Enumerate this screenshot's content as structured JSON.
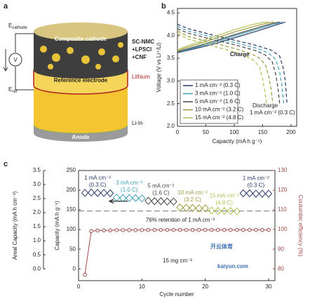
{
  "diagram": {
    "panel_label": "a",
    "e_cathode": {
      "symbol": "E",
      "subscript": "cathode"
    },
    "voltmeter": "V",
    "e_ref": {
      "symbol": "E",
      "subscript": "ref"
    },
    "cathode_layer": "Composite cathode",
    "cathode_parts": [
      "SC-NMC",
      "+LPSCl",
      "+CNF"
    ],
    "lithium": "Lithium",
    "reference_layer": "Reference electrode",
    "li_in": "Li-In",
    "anode": "Anode"
  },
  "chart_data": [
    {
      "type": "line",
      "panel_label": "b",
      "x_label": "Capacity (mA h g⁻¹)",
      "y_label": "Voltage (V vs Li⁺/Li)",
      "xlim": [
        0,
        210
      ],
      "ylim": [
        2.0,
        4.6
      ],
      "xticks": [
        0,
        50,
        100,
        150,
        200
      ],
      "yticks": [
        {
          "value": 2.0,
          "label": "2.0"
        },
        {
          "value": 2.5,
          "label": "2.5"
        },
        {
          "value": 3.0,
          "label": "3.0"
        },
        {
          "value": 3.5,
          "label": "3.5"
        },
        {
          "value": 4.0,
          "label": "4.0"
        },
        {
          "value": 4.5,
          "label": "4.5"
        }
      ],
      "legend": "lower left",
      "annotations": {
        "charge": "Charge",
        "discharge": "Discharge",
        "discharge_rate": "1 mA cm⁻² (0.3 C)"
      },
      "series": [
        {
          "name": "1 mA cm⁻² (0.3 C)",
          "color": "#2b3a67",
          "charge": {
            "x": [
              0,
              10,
              30,
              60,
              100,
              140,
              170,
              190
            ],
            "values": [
              3.62,
              3.65,
              3.71,
              3.8,
              3.95,
              4.1,
              4.22,
              4.3
            ]
          },
          "discharge": {
            "x": [
              0,
              20,
              60,
              100,
              140,
              165,
              180,
              186,
              190,
              193
            ],
            "values": [
              4.25,
              4.15,
              4.02,
              3.9,
              3.78,
              3.68,
              3.55,
              3.3,
              3.0,
              2.5
            ]
          }
        },
        {
          "name": "3 mA cm⁻² (1.0 C)",
          "color": "#3f9fb5",
          "charge": {
            "x": [
              0,
              10,
              30,
              60,
              100,
              140,
              170,
              185
            ],
            "values": [
              3.63,
              3.66,
              3.73,
              3.83,
              3.99,
              4.14,
              4.25,
              4.3
            ]
          },
          "discharge": {
            "x": [
              0,
              20,
              60,
              100,
              140,
              160,
              173,
              180,
              184,
              187
            ],
            "values": [
              4.2,
              4.1,
              3.97,
              3.85,
              3.72,
              3.62,
              3.48,
              3.2,
              2.9,
              2.5
            ]
          }
        },
        {
          "name": "5 mA cm⁻² (1.6 C)",
          "color": "#444444",
          "charge": {
            "x": [
              0,
              10,
              30,
              60,
              100,
              140,
              168,
              180
            ],
            "values": [
              3.64,
              3.68,
              3.75,
              3.86,
              4.02,
              4.17,
              4.27,
              4.3
            ]
          },
          "discharge": {
            "x": [
              0,
              20,
              60,
              100,
              140,
              155,
              167,
              173,
              177,
              180
            ],
            "values": [
              4.15,
              4.05,
              3.92,
              3.8,
              3.66,
              3.57,
              3.42,
              3.15,
              2.85,
              2.5
            ]
          }
        },
        {
          "name": "10 mA cm⁻² (3.2 C)",
          "color": "#9c9a3c",
          "charge": {
            "x": [
              0,
              10,
              30,
              60,
              100,
              140,
              160,
              170
            ],
            "values": [
              3.66,
              3.71,
              3.79,
              3.91,
              4.08,
              4.22,
              4.28,
              4.3
            ]
          },
          "discharge": {
            "x": [
              0,
              20,
              60,
              100,
              130,
              145,
              155,
              161,
              165,
              168
            ],
            "values": [
              4.1,
              3.98,
              3.85,
              3.72,
              3.6,
              3.5,
              3.35,
              3.1,
              2.8,
              2.5
            ]
          }
        },
        {
          "name": "15 mA cm⁻² (4.8 C)",
          "color": "#b5bf55",
          "charge": {
            "x": [
              0,
              10,
              30,
              60,
              100,
              130,
              150,
              160
            ],
            "values": [
              3.68,
              3.74,
              3.83,
              3.96,
              4.13,
              4.24,
              4.29,
              4.3
            ]
          },
          "discharge": {
            "x": [
              0,
              20,
              60,
              100,
              120,
              135,
              145,
              150,
              154,
              157
            ],
            "values": [
              4.05,
              3.92,
              3.78,
              3.64,
              3.55,
              3.45,
              3.3,
              3.05,
              2.75,
              2.5
            ]
          }
        }
      ]
    },
    {
      "type": "scatter",
      "panel_label": "c",
      "x_label": "Cycle number",
      "y_label": "Capacity (mA h g⁻¹)",
      "y2_label": "Coulombic efficiency (%)",
      "xlim": [
        0,
        31
      ],
      "ylim": [
        -30,
        250
      ],
      "y2lim": [
        74,
        130
      ],
      "xticks": [
        0,
        10,
        20,
        30
      ],
      "yticks": [
        0,
        50,
        100,
        150,
        200,
        250
      ],
      "y2ticks": [
        80,
        90,
        100,
        110,
        120,
        130
      ],
      "areal_axis": {
        "label": "Areal Capacity (mA h cm⁻²)",
        "lim": [
          -0.42,
          3.5
        ],
        "ticks": [
          {
            "value": 0,
            "label": "0.0"
          },
          {
            "value": 0.5,
            "label": "0.5"
          },
          {
            "value": 1,
            "label": "1.0"
          },
          {
            "value": 1.5,
            "label": "1.5"
          },
          {
            "value": 2,
            "label": "2.0"
          },
          {
            "value": 2.5,
            "label": "2.5"
          },
          {
            "value": 3,
            "label": "3.0"
          },
          {
            "value": 3.5,
            "label": "3.5"
          }
        ]
      },
      "reference_line": 147,
      "reference_label": "76% retention of 1 mA cm⁻²",
      "loading_label": "15 mg cm⁻²",
      "series": [
        {
          "label_lines": [
            "1 mA cm⁻²",
            "(0.3 C)"
          ],
          "color": "#2b3a67",
          "x": [
            1,
            2,
            3,
            4,
            5
          ],
          "values": [
            193,
            194,
            193,
            193,
            192
          ]
        },
        {
          "label_lines": [
            "3 mA cm⁻²",
            "(1.0 C)"
          ],
          "color": "#3f9fb5",
          "x": [
            6,
            7,
            8,
            9,
            10
          ],
          "values": [
            181,
            180,
            180,
            180,
            179
          ]
        },
        {
          "label_lines": [
            "5 mA cm⁻²",
            "(1.6 C)"
          ],
          "color": "#444444",
          "x": [
            11,
            12,
            13,
            14,
            15
          ],
          "values": [
            173,
            172,
            172,
            171,
            171
          ]
        },
        {
          "label_lines": [
            "10 mA cm⁻²",
            "(3.2 C)"
          ],
          "color": "#9c9a3c",
          "x": [
            16,
            17,
            18,
            19,
            20
          ],
          "values": [
            156,
            155,
            155,
            154,
            154
          ]
        },
        {
          "label_lines": [
            "15 mA cm⁻²",
            "(4.8 C)"
          ],
          "color": "#b5bf55",
          "x": [
            21,
            22,
            23,
            24,
            25
          ],
          "values": [
            148,
            147,
            147,
            147,
            146
          ]
        },
        {
          "label_lines": [
            "1 mA cm⁻²",
            "(0.3 C)"
          ],
          "color": "#2b3a67",
          "x": [
            26,
            27,
            28,
            29,
            30
          ],
          "values": [
            192,
            192,
            191,
            191,
            191
          ]
        },
        {
          "axis": "y2",
          "color": "#a04848",
          "x": [
            1,
            2,
            3,
            4,
            5,
            6,
            7,
            8,
            9,
            10,
            11,
            12,
            13,
            14,
            15,
            16,
            17,
            18,
            19,
            20,
            21,
            22,
            23,
            24,
            25,
            26,
            27,
            28,
            29,
            30
          ],
          "values": [
            77,
            99.2,
            99.5,
            99.6,
            99.6,
            99.7,
            99.7,
            99.7,
            99.7,
            99.7,
            99.8,
            99.8,
            99.8,
            99.8,
            99.8,
            99.8,
            99.8,
            99.8,
            99.8,
            99.8,
            99.8,
            99.8,
            99.8,
            99.8,
            99.8,
            99.8,
            99.8,
            99.8,
            99.8,
            99.8
          ]
        }
      ]
    }
  ],
  "watermark": {
    "brand": "开云体育",
    "site": "kaiyun.com"
  }
}
